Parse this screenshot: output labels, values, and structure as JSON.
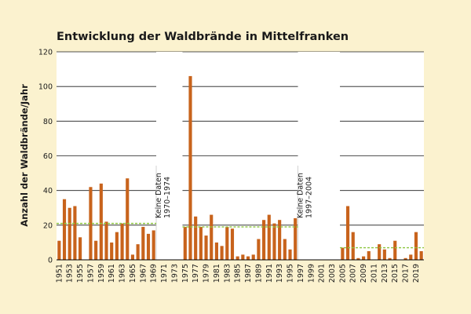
{
  "chart_data": {
    "type": "bar",
    "title": "Entwicklung der Waldbrände in Mittelfranken",
    "ylabel": "Anzahl der Waldbrände/Jahr",
    "xlabel": "",
    "ylim": [
      0,
      120
    ],
    "yticks": [
      0,
      20,
      40,
      60,
      80,
      100,
      120
    ],
    "x_start": 1951,
    "x_end": 2020,
    "xtick_labels": [
      "1951",
      "1953",
      "1955",
      "1957",
      "1959",
      "1961",
      "1963",
      "1965",
      "1967",
      "1969",
      "1971",
      "1973",
      "1975",
      "1977",
      "1979",
      "1981",
      "1983",
      "1985",
      "1987",
      "1989",
      "1991",
      "1993",
      "1995",
      "1997",
      "1999",
      "2001",
      "2003",
      "2005",
      "2007",
      "2009",
      "2011",
      "2013",
      "2015",
      "2017",
      "2019"
    ],
    "bar_color": "#c8631c",
    "grid": "horizontal",
    "bars": [
      {
        "year": 1951,
        "value": 11
      },
      {
        "year": 1952,
        "value": 35
      },
      {
        "year": 1953,
        "value": 30
      },
      {
        "year": 1954,
        "value": 31
      },
      {
        "year": 1955,
        "value": 13
      },
      {
        "year": 1957,
        "value": 42
      },
      {
        "year": 1958,
        "value": 11
      },
      {
        "year": 1959,
        "value": 44
      },
      {
        "year": 1960,
        "value": 22
      },
      {
        "year": 1961,
        "value": 10
      },
      {
        "year": 1962,
        "value": 16
      },
      {
        "year": 1963,
        "value": 21
      },
      {
        "year": 1964,
        "value": 47
      },
      {
        "year": 1965,
        "value": 3
      },
      {
        "year": 1966,
        "value": 9
      },
      {
        "year": 1967,
        "value": 19
      },
      {
        "year": 1968,
        "value": 15
      },
      {
        "year": 1969,
        "value": 17
      },
      {
        "year": 1975,
        "value": 19
      },
      {
        "year": 1976,
        "value": 106
      },
      {
        "year": 1977,
        "value": 25
      },
      {
        "year": 1978,
        "value": 19
      },
      {
        "year": 1979,
        "value": 14
      },
      {
        "year": 1980,
        "value": 26
      },
      {
        "year": 1981,
        "value": 10
      },
      {
        "year": 1982,
        "value": 8
      },
      {
        "year": 1983,
        "value": 19
      },
      {
        "year": 1984,
        "value": 18
      },
      {
        "year": 1985,
        "value": 2
      },
      {
        "year": 1986,
        "value": 3
      },
      {
        "year": 1987,
        "value": 2
      },
      {
        "year": 1988,
        "value": 3
      },
      {
        "year": 1989,
        "value": 12
      },
      {
        "year": 1990,
        "value": 23
      },
      {
        "year": 1991,
        "value": 26
      },
      {
        "year": 1992,
        "value": 21
      },
      {
        "year": 1993,
        "value": 23
      },
      {
        "year": 1994,
        "value": 12
      },
      {
        "year": 1995,
        "value": 6
      },
      {
        "year": 1996,
        "value": 24
      },
      {
        "year": 2005,
        "value": 7
      },
      {
        "year": 2006,
        "value": 31
      },
      {
        "year": 2007,
        "value": 16
      },
      {
        "year": 2008,
        "value": 1
      },
      {
        "year": 2009,
        "value": 2
      },
      {
        "year": 2010,
        "value": 5
      },
      {
        "year": 2012,
        "value": 9
      },
      {
        "year": 2013,
        "value": 6
      },
      {
        "year": 2014,
        "value": 1
      },
      {
        "year": 2015,
        "value": 11
      },
      {
        "year": 2017,
        "value": 1
      },
      {
        "year": 2018,
        "value": 3
      },
      {
        "year": 2019,
        "value": 16
      },
      {
        "year": 2020,
        "value": 5
      }
    ],
    "averages": [
      {
        "from": 1951,
        "to": 1969,
        "value": 21,
        "color": "#8cc63f"
      },
      {
        "from": 1975,
        "to": 1996,
        "value": 19,
        "color": "#8cc63f"
      },
      {
        "from": 2005,
        "to": 2020,
        "value": 7,
        "color": "#8cc63f"
      }
    ],
    "gap_annotations": [
      {
        "from": 1970,
        "to": 1974,
        "lines": [
          "Keine Daten",
          "1970–1974"
        ]
      },
      {
        "from": 1997,
        "to": 2004,
        "lines": [
          "Keine Daten",
          "1997–2004"
        ]
      }
    ]
  }
}
